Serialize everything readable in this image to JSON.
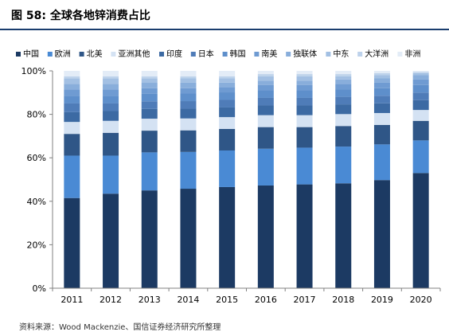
{
  "figure": {
    "title": "图 58:  全球各地锌消费占比",
    "source": "资料来源：Wood Mackenzie、国信证券经济研究所整理"
  },
  "chart_data": {
    "type": "bar",
    "stacked": true,
    "categories": [
      "2011",
      "2012",
      "2013",
      "2014",
      "2015",
      "2016",
      "2017",
      "2018",
      "2019",
      "2020"
    ],
    "ylim": [
      0,
      100
    ],
    "yticks": [
      "0%",
      "20%",
      "40%",
      "60%",
      "80%",
      "100%"
    ],
    "legend_position": "top",
    "grid": false,
    "series": [
      {
        "name": "中国",
        "color": "#1c3a63",
        "values": [
          41.5,
          43.5,
          45.0,
          46.0,
          47.0,
          47.5,
          48.0,
          48.5,
          50.0,
          53.0
        ]
      },
      {
        "name": "欧洲",
        "color": "#4a8ad4",
        "values": [
          19.5,
          17.5,
          17.5,
          17.0,
          17.0,
          17.0,
          17.0,
          17.0,
          16.5,
          15.0
        ]
      },
      {
        "name": "北美",
        "color": "#2f5687",
        "values": [
          10.0,
          10.5,
          10.0,
          10.0,
          10.0,
          10.0,
          9.5,
          9.5,
          9.0,
          9.0
        ]
      },
      {
        "name": "亚洲其他",
        "color": "#d4e2f3",
        "values": [
          5.5,
          5.5,
          5.5,
          5.5,
          5.5,
          5.5,
          5.5,
          5.5,
          5.5,
          5.0
        ]
      },
      {
        "name": "印度",
        "color": "#3c6aa3",
        "values": [
          4.5,
          4.5,
          4.5,
          4.5,
          4.5,
          4.5,
          4.5,
          4.5,
          4.5,
          4.5
        ]
      },
      {
        "name": "日本",
        "color": "#4f7cb8",
        "values": [
          4.0,
          3.5,
          3.5,
          3.5,
          3.5,
          3.5,
          3.5,
          3.5,
          3.5,
          3.5
        ]
      },
      {
        "name": "韩国",
        "color": "#5e8fcb",
        "values": [
          3.5,
          3.5,
          3.5,
          3.5,
          3.5,
          3.5,
          3.5,
          3.5,
          3.5,
          3.5
        ]
      },
      {
        "name": "南美",
        "color": "#6f9bd2",
        "values": [
          3.0,
          3.0,
          2.5,
          2.5,
          2.5,
          2.5,
          2.5,
          2.5,
          2.5,
          2.5
        ]
      },
      {
        "name": "独联体",
        "color": "#89aedb",
        "values": [
          2.5,
          2.5,
          2.5,
          2.5,
          2.0,
          2.0,
          2.0,
          2.0,
          2.0,
          2.0
        ]
      },
      {
        "name": "中东",
        "color": "#a3c0e3",
        "values": [
          2.5,
          2.5,
          2.0,
          2.0,
          2.0,
          2.0,
          2.0,
          1.5,
          1.5,
          1.0
        ]
      },
      {
        "name": "大洋洲",
        "color": "#bdd2eb",
        "values": [
          1.0,
          1.0,
          1.0,
          1.0,
          1.0,
          1.0,
          1.0,
          1.0,
          1.0,
          0.5
        ]
      },
      {
        "name": "非洲",
        "color": "#e3ecf7",
        "values": [
          2.5,
          2.5,
          2.5,
          2.5,
          2.5,
          1.5,
          1.5,
          1.5,
          1.0,
          0.5
        ]
      }
    ]
  }
}
